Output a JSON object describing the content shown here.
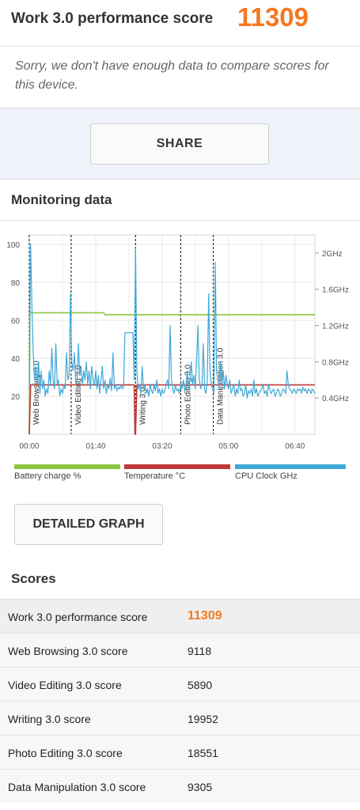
{
  "header": {
    "title": "Work 3.0 performance score",
    "score": "11309",
    "message": "Sorry, we don't have enough data to compare scores for this device."
  },
  "share": {
    "label": "SHARE"
  },
  "monitoring": {
    "title": "Monitoring data",
    "detailed_graph_label": "DETAILED GRAPH",
    "legend": [
      {
        "label": "Battery charge %",
        "color": "#8cc63f"
      },
      {
        "label": "Temperature °C",
        "color": "#c0393b"
      },
      {
        "label": "CPU Clock GHz",
        "color": "#3fa9d8"
      }
    ]
  },
  "chart_data": {
    "type": "line",
    "x_unit": "mm:ss",
    "x_ticks": [
      "00:00",
      "01:40",
      "03:20",
      "05:00",
      "06:40"
    ],
    "x_tick_seconds": [
      0,
      100,
      200,
      300,
      400
    ],
    "xlim_seconds": [
      0,
      430
    ],
    "y_left_ticks": [
      20,
      40,
      60,
      80,
      100
    ],
    "y_left_lim": [
      0,
      105
    ],
    "y_right_ticks": [
      "0.4GHz",
      "0.8GHz",
      "1.2GHz",
      "1.6GHz",
      "2GHz"
    ],
    "y_right_tick_values": [
      0.4,
      0.8,
      1.2,
      1.6,
      2.0
    ],
    "y_right_lim": [
      0,
      2.2
    ],
    "phases": [
      {
        "label": "Web Browsing 3.0",
        "start_seconds": 0
      },
      {
        "label": "Video Editing 3.0",
        "start_seconds": 63
      },
      {
        "label": "Writing 3.0",
        "start_seconds": 160
      },
      {
        "label": "Photo Editing 3.0",
        "start_seconds": 228
      },
      {
        "label": "Data Manipulation 3.0",
        "start_seconds": 277
      }
    ],
    "series": [
      {
        "name": "Battery charge %",
        "axis": "left",
        "points": [
          [
            0,
            0
          ],
          [
            1,
            64
          ],
          [
            112,
            64
          ],
          [
            114,
            63
          ],
          [
            430,
            63
          ]
        ]
      },
      {
        "name": "Temperature °C",
        "axis": "left",
        "points": [
          [
            0,
            0
          ],
          [
            2,
            26
          ],
          [
            158,
            26
          ],
          [
            159,
            0
          ],
          [
            160,
            0
          ],
          [
            162,
            26
          ],
          [
            430,
            26
          ]
        ]
      },
      {
        "name": "CPU Clock GHz",
        "axis": "right",
        "points": [
          [
            0,
            0.5
          ],
          [
            2,
            2.1
          ],
          [
            4,
            1.4
          ],
          [
            6,
            0.9
          ],
          [
            8,
            0.6
          ],
          [
            10,
            0.75
          ],
          [
            12,
            0.55
          ],
          [
            14,
            0.8
          ],
          [
            16,
            0.45
          ],
          [
            18,
            0.7
          ],
          [
            20,
            0.5
          ],
          [
            22,
            0.6
          ],
          [
            24,
            0.42
          ],
          [
            26,
            0.5
          ],
          [
            28,
            0.45
          ],
          [
            30,
            0.7
          ],
          [
            32,
            0.55
          ],
          [
            34,
            0.95
          ],
          [
            36,
            0.6
          ],
          [
            38,
            0.5
          ],
          [
            40,
            1.0
          ],
          [
            42,
            0.55
          ],
          [
            44,
            0.6
          ],
          [
            46,
            0.42
          ],
          [
            48,
            0.5
          ],
          [
            50,
            0.45
          ],
          [
            52,
            0.55
          ],
          [
            54,
            0.5
          ],
          [
            56,
            0.9
          ],
          [
            58,
            0.6
          ],
          [
            60,
            0.65
          ],
          [
            62,
            1.55
          ],
          [
            64,
            0.8
          ],
          [
            66,
            0.7
          ],
          [
            68,
            0.9
          ],
          [
            70,
            0.55
          ],
          [
            72,
            0.6
          ],
          [
            74,
            1.0
          ],
          [
            76,
            0.65
          ],
          [
            78,
            0.75
          ],
          [
            80,
            0.55
          ],
          [
            82,
            0.7
          ],
          [
            84,
            0.6
          ],
          [
            86,
            0.8
          ],
          [
            88,
            0.55
          ],
          [
            90,
            0.7
          ],
          [
            92,
            0.5
          ],
          [
            94,
            0.75
          ],
          [
            96,
            0.6
          ],
          [
            98,
            0.55
          ],
          [
            100,
            0.7
          ],
          [
            102,
            0.5
          ],
          [
            104,
            0.65
          ],
          [
            106,
            0.45
          ],
          [
            108,
            0.6
          ],
          [
            110,
            0.75
          ],
          [
            112,
            0.5
          ],
          [
            114,
            0.6
          ],
          [
            116,
            0.45
          ],
          [
            118,
            0.55
          ],
          [
            120,
            0.5
          ],
          [
            122,
            0.62
          ],
          [
            124,
            0.48
          ],
          [
            126,
            0.9
          ],
          [
            128,
            0.5
          ],
          [
            130,
            0.55
          ],
          [
            132,
            0.48
          ],
          [
            134,
            0.52
          ],
          [
            136,
            0.5
          ],
          [
            138,
            0.55
          ],
          [
            140,
            0.5
          ],
          [
            142,
            0.52
          ],
          [
            144,
            1.12
          ],
          [
            146,
            1.12
          ],
          [
            148,
            1.12
          ],
          [
            150,
            1.12
          ],
          [
            152,
            1.12
          ],
          [
            154,
            1.12
          ],
          [
            156,
            1.12
          ],
          [
            158,
            0.6
          ],
          [
            160,
            2.05
          ],
          [
            162,
            0.7
          ],
          [
            164,
            0.5
          ],
          [
            166,
            0.55
          ],
          [
            168,
            0.45
          ],
          [
            170,
            0.75
          ],
          [
            172,
            0.5
          ],
          [
            174,
            0.55
          ],
          [
            176,
            0.45
          ],
          [
            178,
            0.5
          ],
          [
            180,
            0.42
          ],
          [
            182,
            0.55
          ],
          [
            184,
            0.48
          ],
          [
            186,
            0.45
          ],
          [
            188,
            0.55
          ],
          [
            190,
            0.48
          ],
          [
            192,
            0.6
          ],
          [
            194,
            0.45
          ],
          [
            196,
            0.5
          ],
          [
            198,
            0.42
          ],
          [
            200,
            0.5
          ],
          [
            202,
            0.45
          ],
          [
            204,
            0.48
          ],
          [
            206,
            0.55
          ],
          [
            208,
            0.6
          ],
          [
            210,
            0.5
          ],
          [
            212,
            1.2
          ],
          [
            214,
            0.6
          ],
          [
            216,
            0.5
          ],
          [
            218,
            0.45
          ],
          [
            220,
            0.55
          ],
          [
            222,
            0.48
          ],
          [
            224,
            0.5
          ],
          [
            226,
            0.45
          ],
          [
            228,
            0.55
          ],
          [
            230,
            0.5
          ],
          [
            232,
            0.6
          ],
          [
            234,
            0.48
          ],
          [
            236,
            0.55
          ],
          [
            238,
            0.7
          ],
          [
            240,
            0.5
          ],
          [
            242,
            0.6
          ],
          [
            244,
            0.8
          ],
          [
            246,
            0.55
          ],
          [
            248,
            0.65
          ],
          [
            250,
            0.5
          ],
          [
            252,
            0.85
          ],
          [
            254,
            1.2
          ],
          [
            256,
            0.6
          ],
          [
            258,
            0.5
          ],
          [
            260,
            0.55
          ],
          [
            262,
            1.0
          ],
          [
            264,
            0.5
          ],
          [
            266,
            0.45
          ],
          [
            268,
            0.6
          ],
          [
            270,
            1.55
          ],
          [
            272,
            0.7
          ],
          [
            274,
            0.55
          ],
          [
            276,
            0.5
          ],
          [
            278,
            0.45
          ],
          [
            280,
            1.9
          ],
          [
            282,
            0.7
          ],
          [
            284,
            0.6
          ],
          [
            286,
            0.5
          ],
          [
            288,
            0.8
          ],
          [
            290,
            0.55
          ],
          [
            292,
            0.7
          ],
          [
            294,
            0.5
          ],
          [
            296,
            0.65
          ],
          [
            298,
            0.55
          ],
          [
            300,
            0.5
          ],
          [
            302,
            0.6
          ],
          [
            304,
            0.45
          ],
          [
            306,
            0.5
          ],
          [
            308,
            0.55
          ],
          [
            310,
            0.42
          ],
          [
            312,
            0.5
          ],
          [
            314,
            0.45
          ],
          [
            316,
            0.6
          ],
          [
            318,
            0.48
          ],
          [
            320,
            0.5
          ],
          [
            322,
            0.42
          ],
          [
            324,
            0.45
          ],
          [
            326,
            0.55
          ],
          [
            328,
            0.4
          ],
          [
            330,
            0.48
          ],
          [
            332,
            0.45
          ],
          [
            334,
            0.5
          ],
          [
            336,
            0.42
          ],
          [
            338,
            0.6
          ],
          [
            340,
            0.45
          ],
          [
            342,
            0.5
          ],
          [
            344,
            0.42
          ],
          [
            346,
            0.45
          ],
          [
            348,
            0.48
          ],
          [
            350,
            0.5
          ],
          [
            352,
            0.55
          ],
          [
            354,
            0.45
          ],
          [
            356,
            0.48
          ],
          [
            358,
            0.42
          ],
          [
            360,
            0.55
          ],
          [
            362,
            0.5
          ],
          [
            364,
            0.45
          ],
          [
            366,
            0.48
          ],
          [
            368,
            0.5
          ],
          [
            370,
            0.42
          ],
          [
            372,
            0.45
          ],
          [
            374,
            0.5
          ],
          [
            376,
            0.48
          ],
          [
            378,
            0.42
          ],
          [
            380,
            0.45
          ],
          [
            382,
            0.5
          ],
          [
            384,
            0.48
          ],
          [
            386,
            0.45
          ],
          [
            388,
            0.7
          ],
          [
            390,
            0.55
          ],
          [
            392,
            0.5
          ],
          [
            394,
            0.48
          ],
          [
            396,
            0.45
          ],
          [
            398,
            0.5
          ],
          [
            400,
            0.48
          ],
          [
            402,
            0.45
          ],
          [
            404,
            0.5
          ],
          [
            406,
            0.48
          ],
          [
            408,
            0.5
          ],
          [
            410,
            0.45
          ],
          [
            412,
            0.52
          ],
          [
            414,
            0.48
          ],
          [
            416,
            0.5
          ],
          [
            418,
            0.45
          ],
          [
            420,
            0.5
          ],
          [
            422,
            0.48
          ],
          [
            424,
            0.45
          ],
          [
            426,
            0.5
          ],
          [
            428,
            0.48
          ],
          [
            430,
            0.45
          ]
        ]
      }
    ]
  },
  "scores": {
    "title": "Scores",
    "rows": [
      {
        "name": "Work 3.0 performance score",
        "value": "11309",
        "highlight": true
      },
      {
        "name": "Web Browsing 3.0 score",
        "value": "9118"
      },
      {
        "name": "Video Editing 3.0 score",
        "value": "5890"
      },
      {
        "name": "Writing 3.0 score",
        "value": "19952"
      },
      {
        "name": "Photo Editing 3.0 score",
        "value": "18551"
      },
      {
        "name": "Data Manipulation 3.0 score",
        "value": "9305"
      }
    ]
  }
}
